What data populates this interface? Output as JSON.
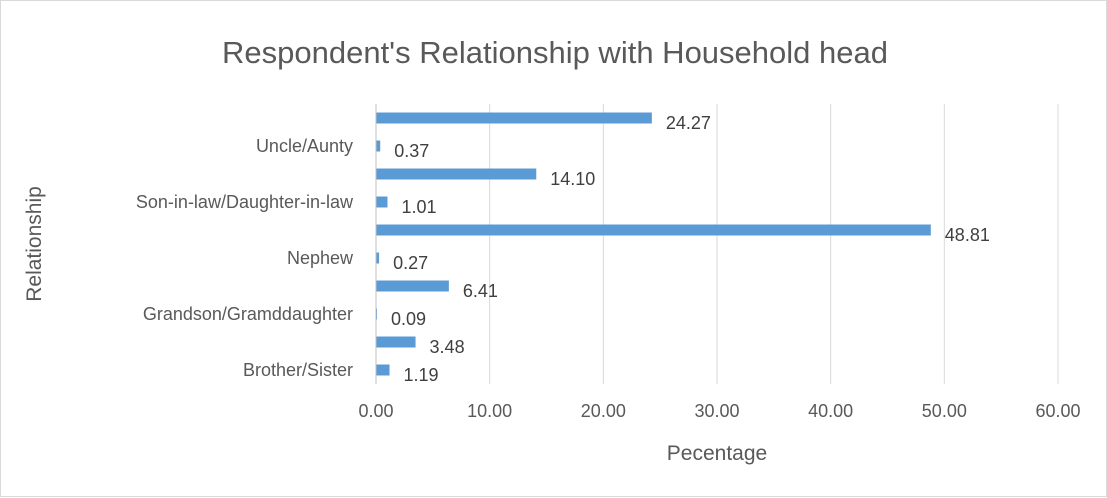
{
  "chart_data": {
    "type": "bar",
    "orientation": "horizontal",
    "title": "Respondent's Relationship with Household head",
    "xlabel": "Pecentage",
    "ylabel": "Relationship",
    "xlim": [
      0,
      60
    ],
    "xticks": [
      "0.00",
      "10.00",
      "20.00",
      "30.00",
      "40.00",
      "50.00",
      "60.00"
    ],
    "grid": "vertical",
    "legend": "none",
    "bar_color": "#5b9bd5",
    "categories": [
      "Brother/Sister",
      "",
      "Grandson/Gramddaughter",
      "",
      "Nephew",
      "",
      "Son-in-law/Daughter-in-law",
      "",
      "Uncle/Aunty",
      ""
    ],
    "values": [
      1.19,
      3.48,
      0.09,
      6.41,
      0.27,
      48.81,
      1.01,
      14.1,
      0.37,
      24.27
    ],
    "data_labels": [
      "1.19",
      "3.48",
      "0.09",
      "6.41",
      "0.27",
      "48.81",
      "1.01",
      "14.10",
      "0.37",
      "24.27"
    ]
  }
}
